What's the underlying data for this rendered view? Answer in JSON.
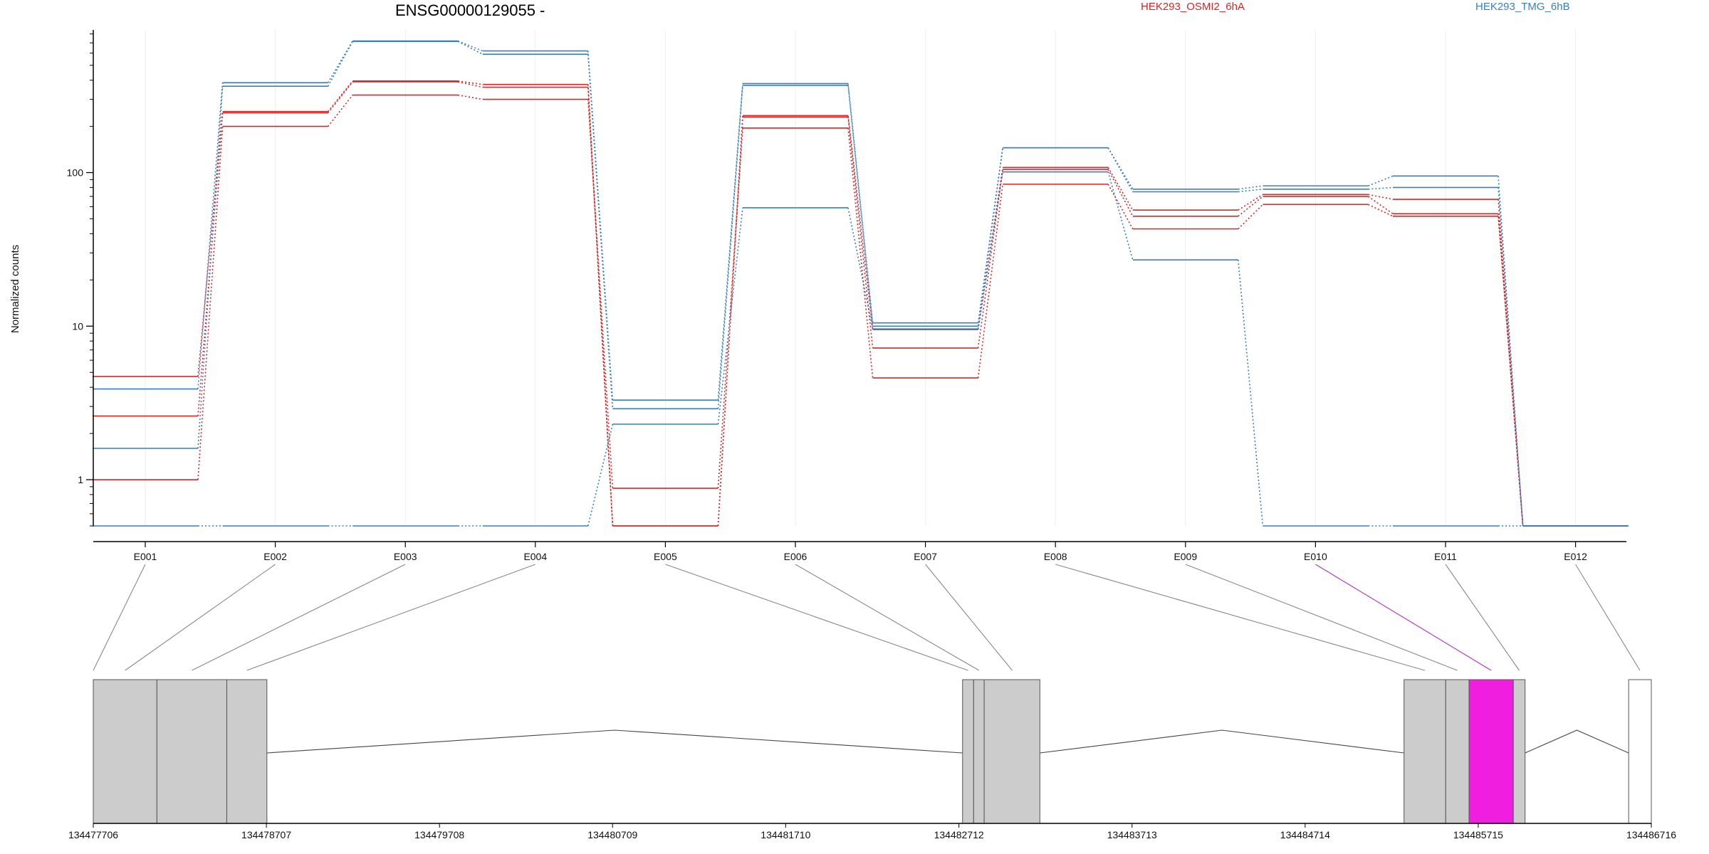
{
  "chart_data": {
    "type": "line",
    "title": "ENSG00000129055 -",
    "ylabel": "Normalized counts",
    "xlabel": "",
    "y_scale": "log",
    "ylim": [
      0.5,
      850
    ],
    "y_ticks": [
      {
        "value": 1,
        "label": "1"
      },
      {
        "value": 10,
        "label": "10"
      },
      {
        "value": 100,
        "label": "100"
      }
    ],
    "grid": "faint vertical lines at exon positions",
    "legend_placement": "top-right",
    "categories": [
      "E001",
      "E002",
      "E003",
      "E004",
      "E005",
      "E006",
      "E007",
      "E008",
      "E009",
      "E010",
      "E011",
      "E012"
    ],
    "colors": {
      "HEK293_OSMI2_6hA": "#d62728",
      "HEK293_TMG_6hB": "#3a7fc1",
      "highlight": "#f01fe0"
    },
    "series": [
      {
        "name": "HEK293_OSMI2_6hA",
        "values": [
          4.7,
          250,
          395,
          375,
          0.5,
          235,
          9.5,
          108,
          57,
          72,
          67,
          0.5
        ]
      },
      {
        "name": "HEK293_OSMI2_6hA",
        "values": [
          2.6,
          245,
          390,
          360,
          0.5,
          230,
          7.2,
          105,
          52,
          70,
          54,
          0.5
        ]
      },
      {
        "name": "HEK293_OSMI2_6hA",
        "values": [
          1.0,
          200,
          320,
          300,
          0.88,
          195,
          4.6,
          84,
          43,
          62,
          52,
          0.5
        ]
      },
      {
        "name": "HEK293_TMG_6hB",
        "values": [
          3.9,
          385,
          720,
          620,
          3.3,
          380,
          10.5,
          145,
          78,
          82,
          95,
          0.5
        ]
      },
      {
        "name": "HEK293_TMG_6hB",
        "values": [
          1.6,
          365,
          715,
          590,
          2.9,
          370,
          10.0,
          145,
          75,
          78,
          80,
          0.5
        ]
      },
      {
        "name": "HEK293_TMG_6hB",
        "values": [
          0.5,
          0.5,
          0.5,
          0.5,
          2.3,
          59,
          9.6,
          101,
          27,
          0.5,
          0.5,
          0.5
        ]
      }
    ],
    "genomic_axis": {
      "tick_labels": [
        "134477706",
        "134478707",
        "134479708",
        "134480709",
        "134481710",
        "134482712",
        "134483713",
        "134484714",
        "134485715",
        "134486716"
      ],
      "tick_values": [
        134477706,
        134478707,
        134479708,
        134480709,
        134481710,
        134482712,
        134483713,
        134484714,
        134485715,
        134486716
      ],
      "range": [
        134477706,
        134486716
      ]
    },
    "gene_model": {
      "exons": [
        {
          "id": "E001",
          "start": 134477706,
          "end": 134478074,
          "color": "#cccccc"
        },
        {
          "id": "E002",
          "start": 134478074,
          "end": 134478478,
          "color": "#cccccc"
        },
        {
          "id": "E003",
          "start": 134478478,
          "end": 134478710,
          "color": "#cccccc"
        },
        {
          "id": "E005",
          "start": 134482733,
          "end": 134482797,
          "color": "#cccccc"
        },
        {
          "id": "E006",
          "start": 134482797,
          "end": 134482858,
          "color": "#cccccc"
        },
        {
          "id": "E007",
          "start": 134482858,
          "end": 134483180,
          "color": "#cccccc"
        },
        {
          "id": "E008",
          "start": 134485286,
          "end": 134485527,
          "color": "#cccccc"
        },
        {
          "id": "E009",
          "start": 134485527,
          "end": 134485662,
          "color": "#cccccc"
        },
        {
          "id": "E010",
          "start": 134485662,
          "end": 134485918,
          "color": "#f01fe0"
        },
        {
          "id": "E011",
          "start": 134485918,
          "end": 134485986,
          "color": "#cccccc"
        },
        {
          "id": "E012",
          "start": 134486585,
          "end": 134486716,
          "color": "#ffffff"
        }
      ],
      "introns": [
        {
          "start": 134478710,
          "end": 134482733
        },
        {
          "start": 134483180,
          "end": 134485286
        },
        {
          "start": 134485986,
          "end": 134486585
        }
      ],
      "connectors": [
        {
          "exon": "E001",
          "target": 134477706
        },
        {
          "exon": "E002",
          "target": 134477890
        },
        {
          "exon": "E003",
          "target": 134478276
        },
        {
          "exon": "E004",
          "target": 134478594
        },
        {
          "exon": "E005",
          "target": 134482765
        },
        {
          "exon": "E006",
          "target": 134482828
        },
        {
          "exon": "E007",
          "target": 134483020
        },
        {
          "exon": "E008",
          "target": 134485406
        },
        {
          "exon": "E009",
          "target": 134485594
        },
        {
          "exon": "E010",
          "target": 134485790,
          "highlight": true
        },
        {
          "exon": "E011",
          "target": 134485952
        },
        {
          "exon": "E012",
          "target": 134486650
        }
      ]
    }
  }
}
